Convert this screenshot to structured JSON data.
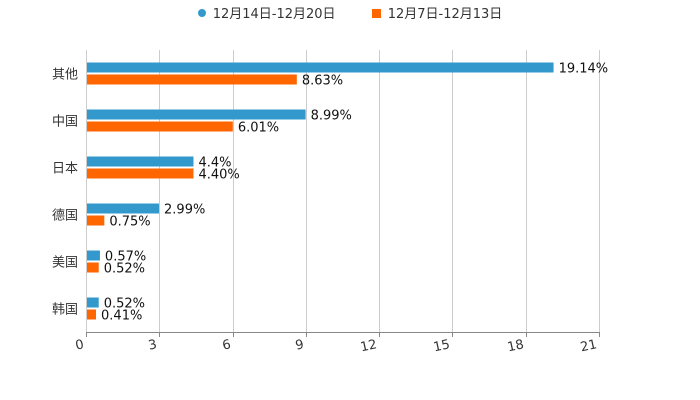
{
  "chart_data": {
    "type": "bar",
    "orientation": "horizontal",
    "categories": [
      "其他",
      "中国",
      "日本",
      "德国",
      "美国",
      "韩国"
    ],
    "series": [
      {
        "name": "12月14日-12月20日",
        "color": "#3399cc",
        "marker": "circle",
        "values": [
          19.14,
          8.99,
          4.4,
          2.99,
          0.57,
          0.52
        ],
        "labels": [
          "19.14%",
          "8.99%",
          "4.4%",
          "2.99%",
          "0.57%",
          "0.52%"
        ]
      },
      {
        "name": "12月7日-12月13日",
        "color": "#ff6600",
        "marker": "square",
        "values": [
          8.63,
          6.01,
          4.4,
          0.75,
          0.52,
          0.41
        ],
        "labels": [
          "8.63%",
          "6.01%",
          "4.40%",
          "0.75%",
          "0.52%",
          "0.41%"
        ]
      }
    ],
    "xlim": [
      0,
      21
    ],
    "xticks": [
      0,
      3,
      6,
      9,
      12,
      15,
      18,
      21
    ],
    "grid": true,
    "legend_position": "top-center",
    "title": "",
    "xlabel": "",
    "ylabel": ""
  }
}
